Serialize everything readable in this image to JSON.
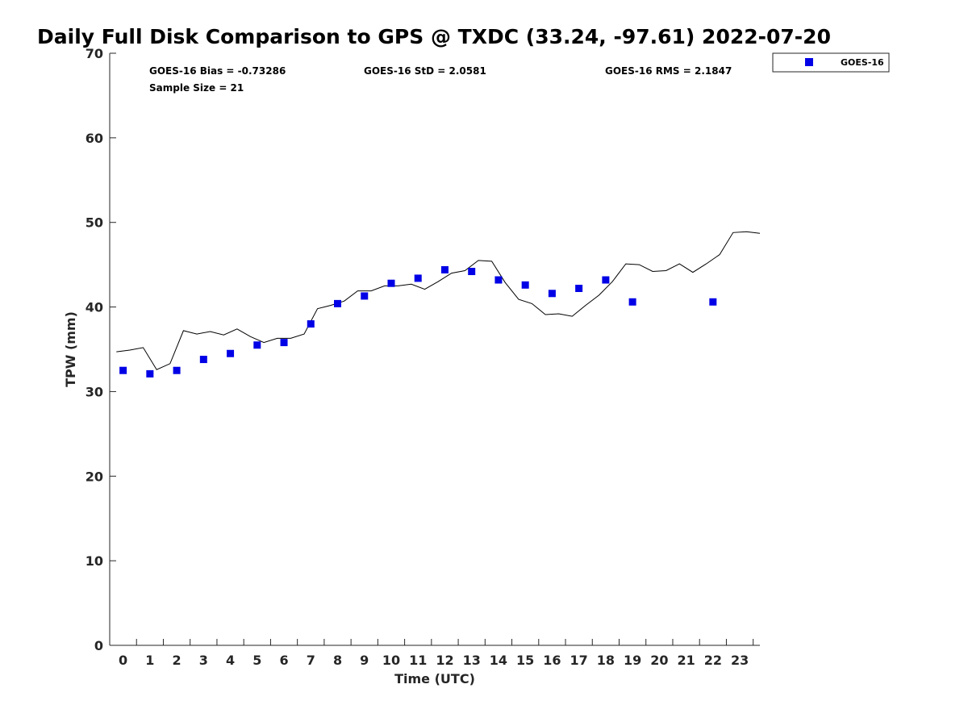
{
  "chart_data": {
    "type": "scatter",
    "title": "Daily Full Disk Comparison to GPS @ TXDC (33.24, -97.61) 2022-07-20",
    "xlabel": "Time (UTC)",
    "ylabel": "TPW (mm)",
    "xlim": [
      -0.5,
      23.75
    ],
    "ylim": [
      0,
      70
    ],
    "x_ticks": [
      "0",
      "1",
      "2",
      "3",
      "4",
      "5",
      "6",
      "7",
      "8",
      "9",
      "10",
      "11",
      "12",
      "13",
      "14",
      "15",
      "16",
      "17",
      "18",
      "19",
      "20",
      "21",
      "22",
      "23"
    ],
    "y_ticks": [
      "0",
      "10",
      "20",
      "30",
      "40",
      "50",
      "60",
      "70"
    ],
    "grid": false,
    "legend_position": "top-right outside",
    "stats": {
      "bias": "GOES-16 Bias = -0.73286",
      "std": "GOES-16 StD = 2.0581",
      "rms": "GOES-16 RMS = 2.1847",
      "sample": "Sample Size = 21"
    },
    "series": [
      {
        "name": "GOES-16",
        "kind": "scatter",
        "marker": "square",
        "color": "#0000e6",
        "x": [
          0,
          1,
          2,
          3,
          4,
          5,
          6,
          7,
          8,
          9,
          10,
          11,
          12,
          13,
          14,
          15,
          16,
          17,
          18,
          19,
          22
        ],
        "y": [
          32.5,
          32.1,
          32.5,
          33.8,
          34.5,
          35.5,
          35.8,
          38.0,
          40.4,
          41.3,
          42.8,
          43.4,
          44.4,
          44.2,
          43.2,
          42.6,
          41.6,
          42.2,
          43.2,
          40.6,
          40.6
        ]
      },
      {
        "name": "",
        "kind": "line",
        "color": "#000000",
        "x": [
          -0.25,
          0.25,
          0.75,
          1.25,
          1.75,
          2.25,
          2.75,
          3.25,
          3.75,
          4.25,
          4.75,
          5.25,
          5.75,
          6.25,
          6.75,
          7.25,
          7.75,
          8.25,
          8.75,
          9.25,
          9.75,
          10.25,
          10.75,
          11.25,
          11.75,
          12.25,
          12.75,
          13.25,
          13.75,
          14.25,
          14.75,
          15.25,
          15.75,
          16.25,
          16.75,
          17.25,
          17.75,
          18.25,
          18.75,
          19.25,
          19.75,
          20.25,
          20.75,
          21.25,
          21.75,
          22.25,
          22.75,
          23.25,
          23.75
        ],
        "y": [
          34.7,
          34.9,
          35.2,
          32.6,
          33.3,
          37.2,
          36.8,
          37.1,
          36.7,
          37.4,
          36.5,
          35.8,
          36.3,
          36.3,
          36.8,
          39.8,
          40.2,
          40.7,
          41.9,
          41.9,
          42.5,
          42.5,
          42.7,
          42.1,
          43.0,
          44.0,
          44.3,
          45.5,
          45.4,
          42.9,
          40.9,
          40.4,
          39.1,
          39.2,
          38.9,
          40.2,
          41.4,
          43.0,
          45.1,
          45.0,
          44.2,
          44.3,
          45.1,
          44.1,
          45.1,
          46.2,
          48.8,
          48.9,
          48.7
        ]
      }
    ]
  }
}
